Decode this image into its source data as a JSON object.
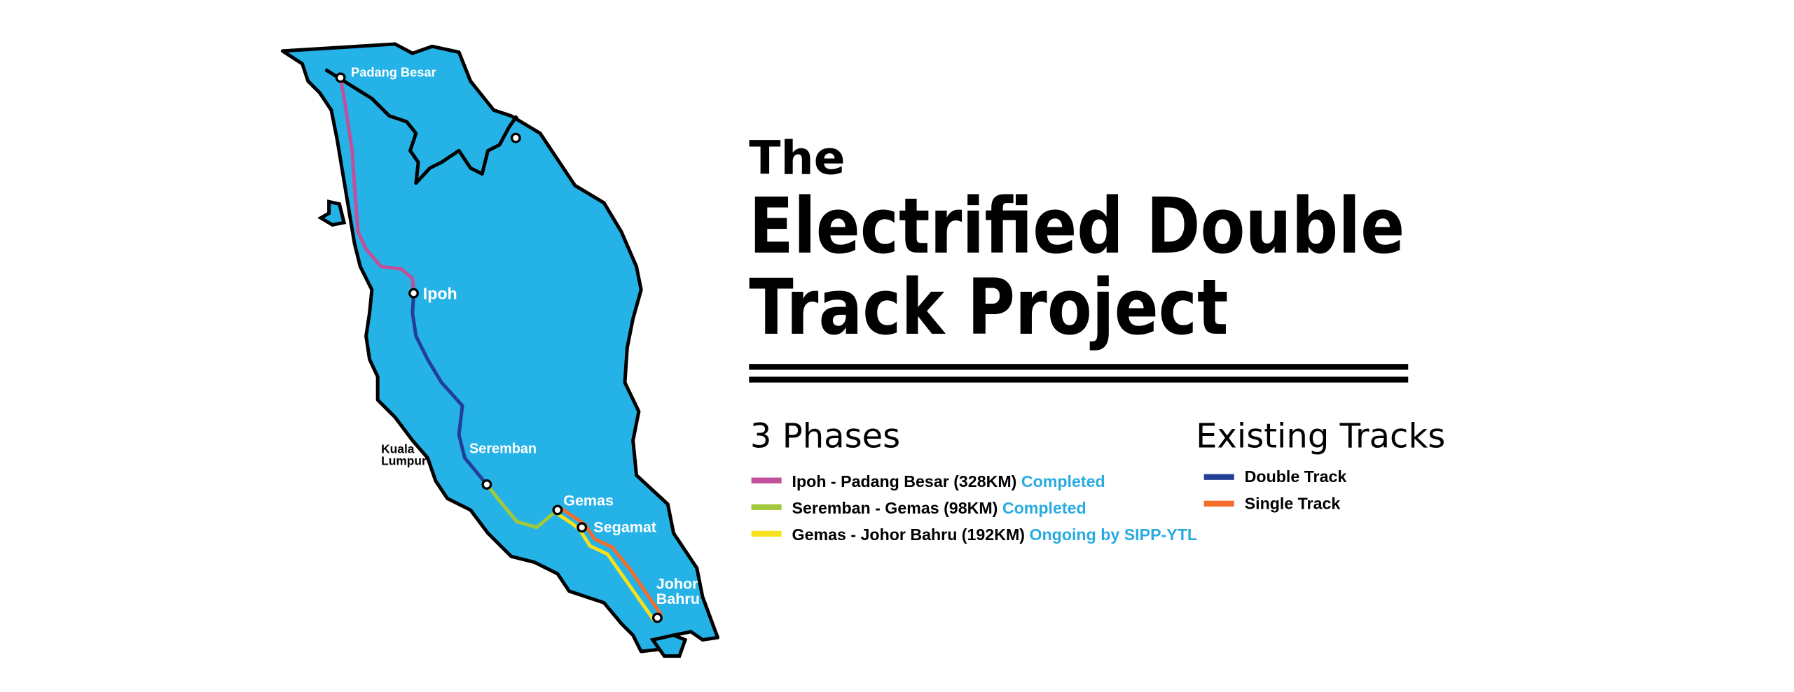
{
  "title": {
    "line1": "The",
    "line2": "Electrified Double",
    "line3": "Track Project"
  },
  "phases": {
    "heading": "3 Phases",
    "status_color": "#29abe2",
    "items": [
      {
        "label": "Ipoh - Padang Besar (328KM)",
        "status": "Completed",
        "color": "#c0509b"
      },
      {
        "label": "Seremban - Gemas (98KM)",
        "status": "Completed",
        "color": "#a3c83a"
      },
      {
        "label": "Gemas - Johor Bahru (192KM)",
        "status": "Ongoing by SIPP-YTL",
        "color": "#f6e11b"
      }
    ]
  },
  "existing_tracks": {
    "heading": "Existing Tracks",
    "items": [
      {
        "label": "Double Track",
        "color": "#233f94"
      },
      {
        "label": "Single Track",
        "color": "#f26c2a"
      }
    ]
  },
  "map": {
    "land_color": "#25b2e6",
    "labels": [
      "Padang Besar",
      "Ipoh",
      "Seremban",
      "Kuala",
      "Lumpur",
      "Gemas",
      "Segamat",
      "Johor",
      "Bahru"
    ]
  }
}
